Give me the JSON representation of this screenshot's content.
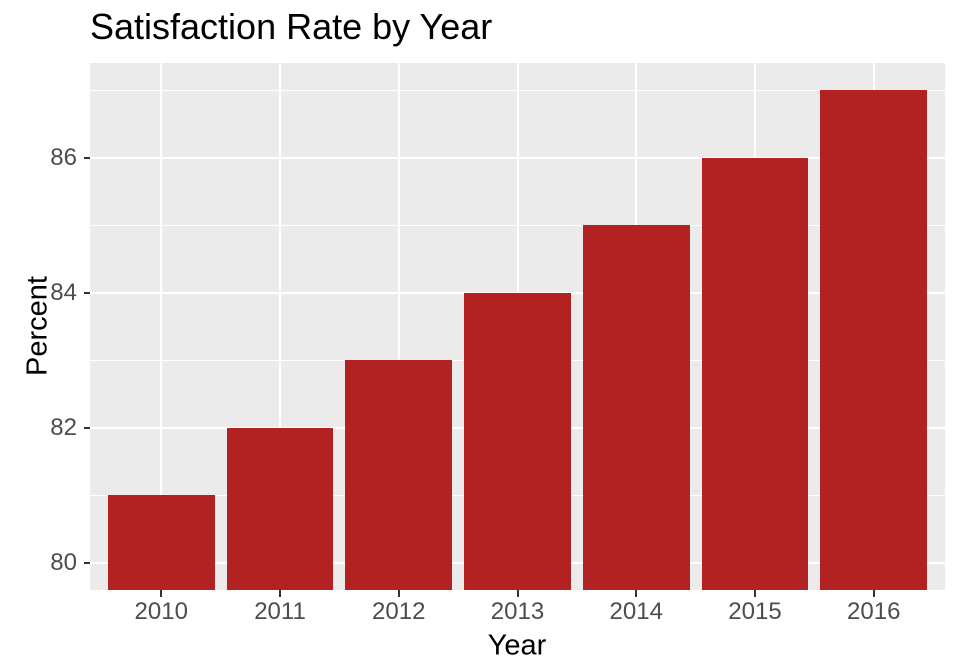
{
  "chart_data": {
    "type": "bar",
    "title": "Satisfaction Rate by Year",
    "xlabel": "Year",
    "ylabel": "Percent",
    "categories": [
      "2010",
      "2011",
      "2012",
      "2013",
      "2014",
      "2015",
      "2016"
    ],
    "values": [
      81,
      82,
      83,
      84,
      85,
      86,
      87
    ],
    "ylim": [
      79.6,
      87.4
    ],
    "yticks_major": [
      80,
      82,
      84,
      86
    ],
    "yticks_minor": [
      81,
      83,
      85,
      87
    ],
    "grid": true,
    "legend": "none",
    "colors": {
      "bar_fill": "#B22222",
      "panel_bg": "#EBEBEB",
      "grid_line": "#FFFFFF",
      "tick_label": "#4D4D4D",
      "tick_mark": "#333333",
      "title_text": "#000000",
      "background": "#FFFFFF"
    }
  }
}
